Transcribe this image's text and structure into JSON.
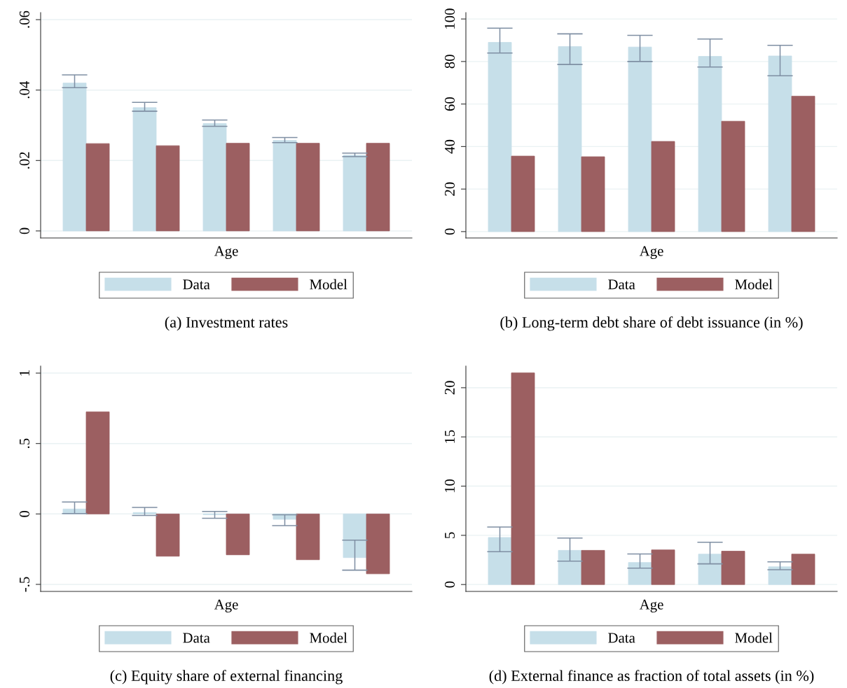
{
  "chart_data": [
    {
      "type": "bar",
      "title": "(a) Investment rates",
      "xlabel": "Age",
      "categories": [
        null,
        null,
        null,
        null,
        null
      ],
      "series": [
        {
          "name": "Data",
          "color": "#c6dfe9",
          "values": [
            0.042,
            0.035,
            0.0305,
            0.0257,
            0.0215
          ],
          "errors": [
            [
              0.0407,
              0.0443
            ],
            [
              0.034,
              0.0365
            ],
            [
              0.0297,
              0.0315
            ],
            [
              0.0251,
              0.0265
            ],
            [
              0.0211,
              0.0221
            ]
          ]
        },
        {
          "name": "Model",
          "color": "#9c5f61",
          "values": [
            0.0248,
            0.0242,
            0.0249,
            0.0249,
            0.0249
          ]
        }
      ],
      "ylim": [
        -0.002,
        0.062
      ],
      "yticks": [
        0,
        {
          "value": 0.02,
          "label": ".02"
        },
        {
          "value": 0.04,
          "label": ".04"
        },
        {
          "value": 0.06,
          "label": ".06"
        }
      ],
      "grid": "y",
      "legend": "bottom"
    },
    {
      "type": "bar",
      "title": "(b) Long-term debt share of debt issuance (in %)",
      "xlabel": "Age",
      "categories": [
        null,
        null,
        null,
        null,
        null
      ],
      "series": [
        {
          "name": "Data",
          "color": "#c6dfe9",
          "values": [
            89,
            87,
            86.8,
            82.4,
            82.6
          ],
          "errors": [
            [
              84,
              95.7
            ],
            [
              78.6,
              93
            ],
            [
              80,
              92.3
            ],
            [
              77.4,
              90.6
            ],
            [
              73.3,
              87.6
            ]
          ]
        },
        {
          "name": "Model",
          "color": "#9c5f61",
          "values": [
            35.5,
            35.2,
            42.4,
            51.9,
            63.7
          ]
        }
      ],
      "ylim": [
        -3,
        103
      ],
      "yticks": [
        0,
        20,
        40,
        60,
        80,
        100
      ],
      "grid": "y",
      "legend": "bottom"
    },
    {
      "type": "bar",
      "title": "(c) Equity share of external financing",
      "xlabel": "Age",
      "categories": [
        null,
        null,
        null,
        null,
        null
      ],
      "series": [
        {
          "name": "Data",
          "color": "#c6dfe9",
          "values": [
            0.035,
            0.01,
            -0.005,
            -0.038,
            -0.31
          ],
          "errors": [
            [
              0.003,
              0.085
            ],
            [
              -0.011,
              0.046
            ],
            [
              -0.031,
              0.018
            ],
            [
              -0.083,
              -0.006
            ],
            [
              -0.399,
              -0.186
            ]
          ]
        },
        {
          "name": "Model",
          "color": "#9c5f61",
          "values": [
            0.725,
            -0.3,
            -0.29,
            -0.325,
            -0.425
          ]
        }
      ],
      "ylim": [
        -0.55,
        1.05
      ],
      "yticks": [
        {
          "value": -0.5,
          "label": "-.5"
        },
        0,
        {
          "value": 0.5,
          "label": ".5"
        },
        1
      ],
      "grid": "y",
      "legend": "bottom"
    },
    {
      "type": "bar",
      "title": "(d) External finance as fraction of total assets (in %)",
      "xlabel": "Age",
      "categories": [
        null,
        null,
        null,
        null,
        null
      ],
      "series": [
        {
          "name": "Data",
          "color": "#c6dfe9",
          "values": [
            4.78,
            3.47,
            2.24,
            3.09,
            1.8
          ],
          "errors": [
            [
              3.33,
              5.85
            ],
            [
              2.38,
              4.73
            ],
            [
              1.67,
              3.11
            ],
            [
              2.1,
              4.29
            ],
            [
              1.5,
              2.3
            ]
          ]
        },
        {
          "name": "Model",
          "color": "#9c5f61",
          "values": [
            21.5,
            3.47,
            3.52,
            3.39,
            3.09
          ]
        }
      ],
      "ylim": [
        -0.7,
        22.2
      ],
      "yticks": [
        0,
        5,
        10,
        15,
        20
      ],
      "grid": "y",
      "legend": "bottom"
    }
  ]
}
